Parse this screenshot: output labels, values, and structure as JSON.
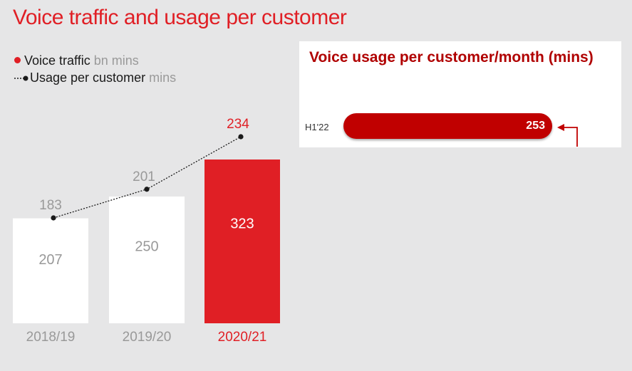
{
  "title": "Voice traffic and usage per customer",
  "legend": {
    "traffic_label": "Voice traffic",
    "traffic_unit": "bn mins",
    "usage_label": "Usage per customer",
    "usage_unit": "mins"
  },
  "colors": {
    "accent": "#e01f25",
    "bar_default": "#ffffff",
    "value_grey": "#999999",
    "line": "#1a1a1a",
    "inset_bar": "#c00000"
  },
  "chart_data": [
    {
      "type": "bar",
      "categories": [
        "2018/19",
        "2019/20",
        "2020/21"
      ],
      "series": [
        {
          "name": "Voice traffic",
          "values": [
            207,
            250,
            323
          ]
        },
        {
          "name": "Usage per customer",
          "values": [
            183,
            201,
            234
          ]
        }
      ],
      "highlight_index": 2,
      "ylim": [
        0,
        323
      ]
    },
    {
      "type": "bar",
      "title": "Voice usage per customer/month (mins)",
      "categories": [
        "H1'22"
      ],
      "values": [
        253
      ]
    }
  ],
  "inset": {
    "title": "Voice usage per customer/month (mins)",
    "category": "H1'22",
    "value": "253"
  }
}
